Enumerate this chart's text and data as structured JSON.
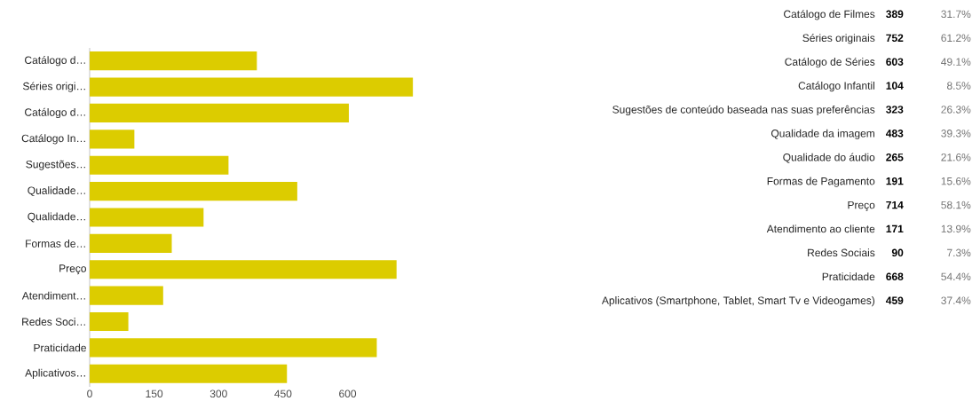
{
  "chart_data": [
    {
      "type": "bar",
      "orientation": "horizontal",
      "categories": [
        "Catálogo d…",
        "Séries origi…",
        "Catálogo d…",
        "Catálogo In…",
        "Sugestões…",
        "Qualidade…",
        "Qualidade…",
        "Formas de…",
        "Preço",
        "Atendiment…",
        "Redes Soci…",
        "Praticidade",
        "Aplicativos…"
      ],
      "values": [
        389,
        752,
        603,
        104,
        323,
        483,
        265,
        191,
        714,
        171,
        90,
        668,
        459
      ],
      "color": "#dccc00",
      "xlim": [
        0,
        760
      ],
      "xticks": [
        0,
        150,
        300,
        450,
        600
      ]
    },
    {
      "type": "other",
      "categories": [
        "Catálogo de Filmes",
        "Séries originais",
        "Catálogo de Séries",
        "Catálogo Infantil",
        "Sugestões de conteúdo baseada nas suas preferências",
        "Qualidade da imagem",
        "Qualidade do áudio",
        "Formas de Pagamento",
        "Preço",
        "Atendimento ao cliente",
        "Redes Sociais",
        "Praticidade",
        "Aplicativos (Smartphone, Tablet, Smart Tv e Videogames)"
      ],
      "values": [
        389,
        752,
        603,
        104,
        323,
        483,
        265,
        191,
        714,
        171,
        90,
        668,
        459
      ],
      "data_labels": true,
      "annotations": [
        "31.7%",
        "61.2%",
        "49.1%",
        "8.5%",
        "26.3%",
        "39.3%",
        "21.6%",
        "15.6%",
        "58.1%",
        "13.9%",
        "7.3%",
        "54.4%",
        "37.4%"
      ]
    }
  ]
}
